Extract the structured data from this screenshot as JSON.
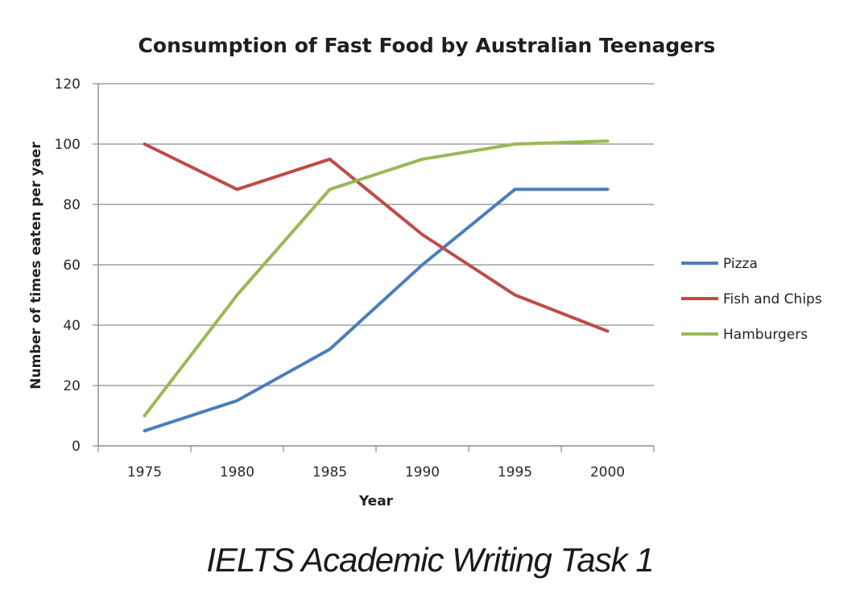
{
  "chart_data": {
    "type": "line",
    "title": "Consumption of Fast Food by Australian Teenagers",
    "xlabel": "Year",
    "ylabel": "Number of times eaten per yaer",
    "categories": [
      "1975",
      "1980",
      "1985",
      "1990",
      "1995",
      "2000"
    ],
    "ylim": [
      0,
      120
    ],
    "yticks": [
      0,
      20,
      40,
      60,
      80,
      100,
      120
    ],
    "grid": true,
    "legend_position": "right",
    "series": [
      {
        "name": "Pizza",
        "color": "#4a7ebb",
        "values": [
          5,
          15,
          32,
          60,
          85,
          85
        ]
      },
      {
        "name": "Fish and Chips",
        "color": "#be4b48",
        "values": [
          100,
          85,
          95,
          70,
          50,
          38
        ]
      },
      {
        "name": "Hamburgers",
        "color": "#98b954",
        "values": [
          10,
          50,
          85,
          95,
          100,
          101
        ]
      }
    ]
  },
  "caption": "IELTS Academic Writing Task 1"
}
